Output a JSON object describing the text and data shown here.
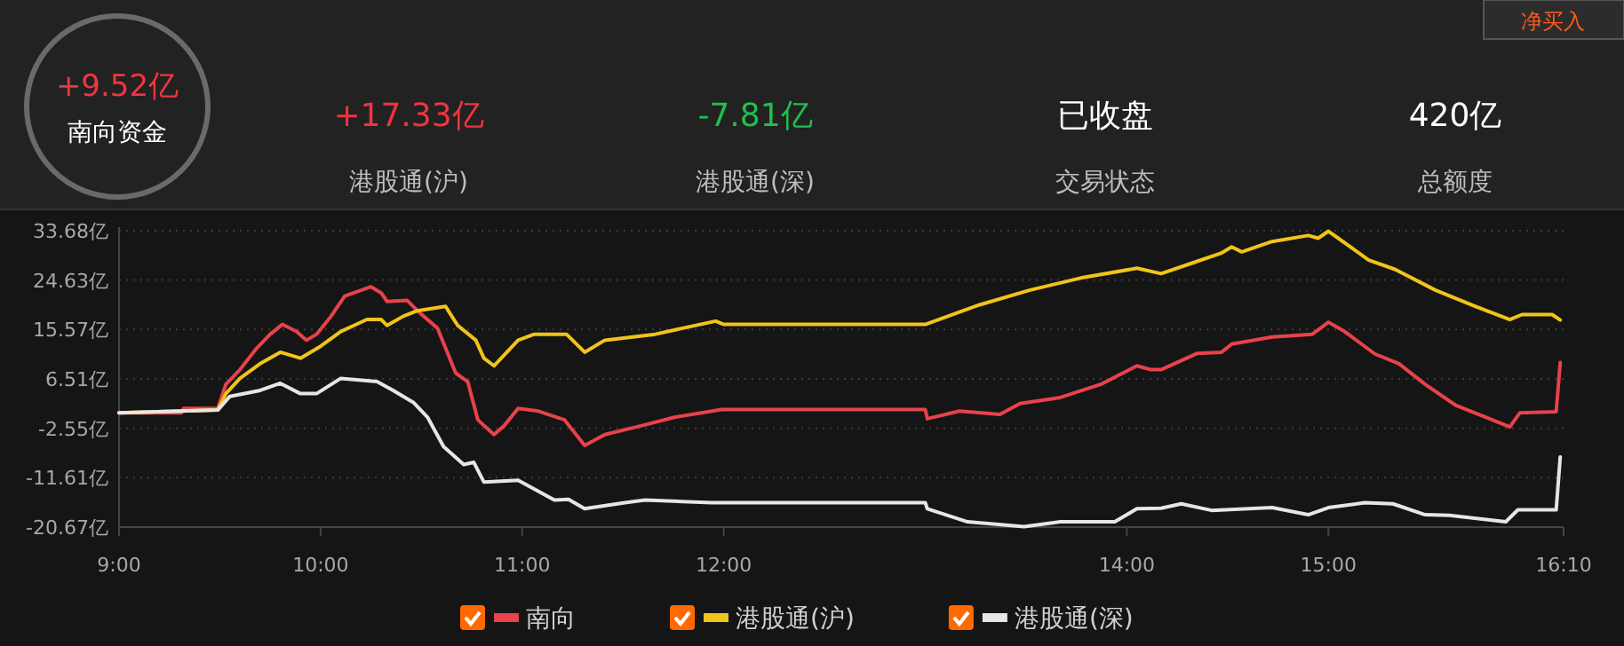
{
  "chart_data": [
    {
      "type": "other",
      "annotations": [
        "+9.52亿",
        "南向资金",
        "+17.33亿",
        "港股通(沪)",
        "-7.81亿",
        "港股通(深)",
        "已收盘",
        "交易状态",
        "420亿",
        "总额度",
        "净买入"
      ]
    },
    {
      "type": "line",
      "xlim": [
        9,
        16.1667
      ],
      "xticks": [
        {
          "value": 9,
          "label": "9:00"
        },
        {
          "value": 10,
          "label": "10:00"
        },
        {
          "value": 11,
          "label": "11:00"
        },
        {
          "value": 12,
          "label": "12:00"
        },
        {
          "value": 14,
          "label": "14:00"
        },
        {
          "value": 15,
          "label": "15:00"
        },
        {
          "value": 16.1667,
          "label": "16:10"
        }
      ],
      "ylim": [
        -20.67,
        33.68
      ],
      "yticks": [
        {
          "value": -20.67,
          "label": "-20.67亿"
        },
        {
          "value": -11.61,
          "label": "-11.61亿"
        },
        {
          "value": -2.55,
          "label": "-2.55亿"
        },
        {
          "value": 6.51,
          "label": "6.51亿"
        },
        {
          "value": 15.57,
          "label": "15.57亿"
        },
        {
          "value": 24.63,
          "label": "24.63亿"
        },
        {
          "value": 33.68,
          "label": "33.68亿"
        }
      ],
      "grid": "y",
      "legend": "bottom",
      "marker": "none",
      "line_style": "solid",
      "series": [
        {
          "name": "南向",
          "color": "#e8424a",
          "x": [
            9,
            9.31,
            9.32,
            9.49,
            9.53,
            9.6,
            9.68,
            9.75,
            9.81,
            9.88,
            9.93,
            9.98,
            10.05,
            10.12,
            10.25,
            10.3,
            10.33,
            10.43,
            10.48,
            10.58,
            10.67,
            10.73,
            10.78,
            10.86,
            10.91,
            10.98,
            11.08,
            11.21,
            11.31,
            11.41,
            11.59,
            11.76,
            11.99,
            13,
            13.01,
            13.17,
            13.37,
            13.47,
            13.67,
            13.87,
            14.05,
            14.12,
            14.17,
            14.35,
            14.47,
            14.52,
            14.72,
            14.92,
            15,
            15.08,
            15.23,
            15.35,
            15.48,
            15.63,
            15.78,
            15.9,
            15.95,
            16.13,
            16.15
          ],
          "values": [
            0.3,
            0.3,
            1.1,
            1.1,
            5.5,
            8.2,
            12.0,
            14.7,
            16.5,
            15.2,
            13.6,
            14.7,
            17.9,
            21.7,
            23.4,
            22.3,
            20.7,
            20.9,
            19.0,
            15.8,
            7.6,
            6.0,
            -1.0,
            -3.7,
            -2.1,
            1.1,
            0.6,
            -1.0,
            -5.7,
            -3.7,
            -2.1,
            -0.5,
            0.9,
            0.9,
            -0.8,
            0.6,
            0.0,
            2.0,
            3.1,
            5.5,
            8.9,
            8.2,
            8.2,
            11.2,
            11.4,
            12.9,
            14.2,
            14.7,
            16.9,
            15.2,
            11.1,
            9.3,
            5.5,
            1.7,
            -0.5,
            -2.3,
            0.3,
            0.5,
            9.5
          ]
        },
        {
          "name": "港股通(沪)",
          "color": "#f0c419",
          "x": [
            9,
            9.49,
            9.53,
            9.6,
            9.7,
            9.8,
            9.9,
            10,
            10.1,
            10.23,
            10.3,
            10.33,
            10.41,
            10.48,
            10.62,
            10.68,
            10.77,
            10.81,
            10.86,
            10.98,
            11.06,
            11.22,
            11.31,
            11.41,
            11.66,
            11.96,
            12,
            13,
            13.27,
            13.52,
            13.77,
            14.05,
            14.17,
            14.32,
            14.47,
            14.52,
            14.57,
            14.72,
            14.9,
            14.95,
            15,
            15.2,
            15.33,
            15.53,
            15.73,
            15.9,
            15.96,
            16.11,
            16.15
          ],
          "values": [
            0.3,
            0.8,
            3.8,
            6.6,
            9.3,
            11.4,
            10.3,
            12.5,
            15.2,
            17.4,
            17.4,
            16.3,
            18.0,
            19.0,
            19.8,
            16.3,
            13.6,
            10.3,
            8.9,
            13.6,
            14.7,
            14.7,
            11.4,
            13.6,
            14.7,
            17.1,
            16.5,
            16.5,
            20.1,
            22.8,
            25.0,
            26.8,
            25.8,
            27.7,
            29.6,
            30.7,
            29.8,
            31.7,
            32.8,
            32.3,
            33.6,
            28.3,
            26.6,
            22.8,
            19.8,
            17.4,
            18.3,
            18.3,
            17.3
          ]
        },
        {
          "name": "港股通(深)",
          "color": "#e6e6e6",
          "x": [
            9,
            9.49,
            9.55,
            9.7,
            9.8,
            9.9,
            9.98,
            10.1,
            10.28,
            10.36,
            10.46,
            10.53,
            10.61,
            10.71,
            10.76,
            10.81,
            10.98,
            11.16,
            11.23,
            11.31,
            11.51,
            11.61,
            11.94,
            13,
            13.01,
            13.21,
            13.49,
            13.67,
            13.94,
            14.05,
            14.17,
            14.27,
            14.42,
            14.72,
            14.9,
            15,
            15.18,
            15.32,
            15.48,
            15.6,
            15.88,
            15.94,
            16.13,
            16.15
          ],
          "values": [
            0.3,
            0.8,
            3.3,
            4.4,
            5.7,
            3.8,
            3.8,
            6.6,
            6.0,
            4.4,
            2.2,
            -0.5,
            -5.9,
            -9.2,
            -8.8,
            -12.4,
            -12.1,
            -15.7,
            -15.6,
            -17.3,
            -16.2,
            -15.7,
            -16.2,
            -16.2,
            -17.3,
            -19.7,
            -20.6,
            -19.7,
            -19.7,
            -17.3,
            -17.2,
            -16.4,
            -17.6,
            -17.1,
            -18.4,
            -17.1,
            -16.2,
            -16.4,
            -18.4,
            -18.5,
            -19.7,
            -17.5,
            -17.5,
            -7.8
          ]
        }
      ]
    }
  ]
}
